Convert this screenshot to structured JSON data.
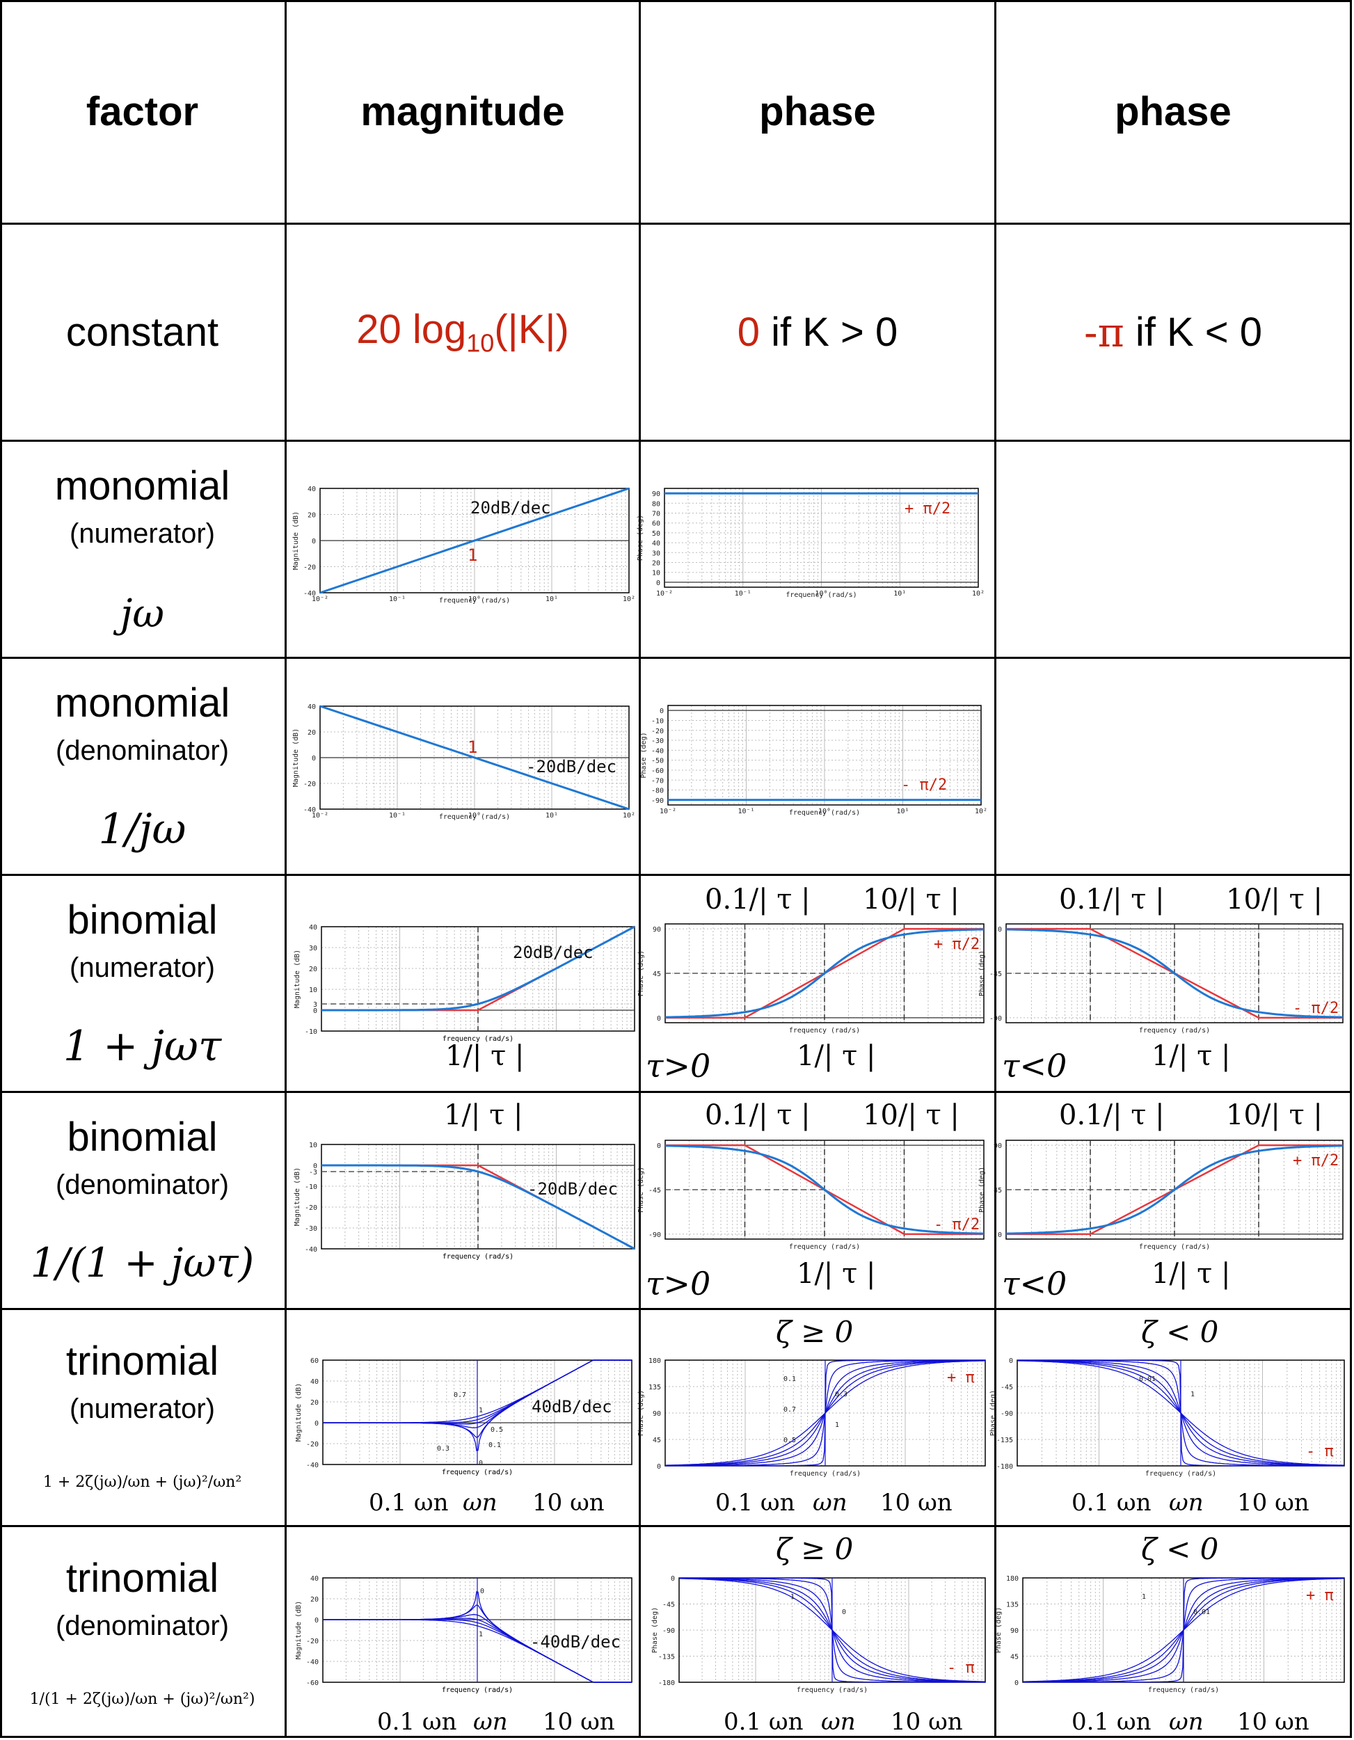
{
  "header": {
    "c1": "factor",
    "c2": "magnitude",
    "c3": "phase",
    "c4": "phase"
  },
  "constant": {
    "factor": "constant",
    "magnitude": "20 log",
    "magnitude_sub": "10",
    "magnitude_arg": "(|K|)",
    "phase_pos_val": "0",
    "phase_pos_cond": " if K > 0",
    "phase_neg_val": "-π",
    "phase_neg_cond": " if K < 0"
  },
  "rows": [
    {
      "title": "monomial",
      "sub": "(numerator)",
      "expr": "jω"
    },
    {
      "title": "monomial",
      "sub": "(denominator)",
      "expr": "1/jω"
    },
    {
      "title": "binomial",
      "sub": "(numerator)",
      "expr": "1 + jωτ"
    },
    {
      "title": "binomial",
      "sub": "(denominator)",
      "expr": "1/(1 + jωτ)"
    },
    {
      "title": "trinomial",
      "sub": "(numerator)",
      "expr": "1 + 2ζ(jω)/ωn + (jω)²/ωn²"
    },
    {
      "title": "trinomial",
      "sub": "(denominator)",
      "expr": "1/(1 + 2ζ(jω)/ωn + (jω)²/ωn²)"
    }
  ],
  "axis": {
    "mag_ylabel": "Magnitude (dB)",
    "phase_ylabel": "Phase (deg)",
    "xlabel": "frequency (rad/s)"
  },
  "annot": {
    "slope20": "20dB/dec",
    "slope_m20": "-20dB/dec",
    "slope40": "40dB/dec",
    "slope_m40": "-40dB/dec",
    "one": "1",
    "plus_pi2": "+ π/2",
    "minus_pi2": "- π/2",
    "plus_pi": "+ π",
    "minus_pi": "- π",
    "low_corner": "0.1/| τ |",
    "high_corner": "10/| τ |",
    "corner": "1/| τ |",
    "tau_pos": "τ>0",
    "tau_neg": "τ<0",
    "zeta_pos": "ζ ≥ 0",
    "zeta_neg": "ζ < 0",
    "wn_low": "0.1 ωn",
    "wn": "ωn",
    "wn_high": "10 ωn"
  },
  "colors": {
    "curve": "#1f78d4",
    "asymptote": "#e8383d",
    "trinomial": "#1010d8",
    "accent_red": "#c62410"
  },
  "chart_data": [
    {
      "type": "line",
      "id": "mono-num-mag",
      "ylabel": "Magnitude (dB)",
      "xlabel": "frequency (rad/s)",
      "xscale": "log",
      "xlim": [
        0.01,
        100
      ],
      "ylim": [
        -40,
        40
      ],
      "yticks": [
        -40,
        -20,
        0,
        20,
        40
      ],
      "series": [
        {
          "x": [
            0.01,
            100
          ],
          "y": [
            -40,
            40
          ]
        }
      ]
    },
    {
      "type": "line",
      "id": "mono-num-phase",
      "ylabel": "Phase (deg)",
      "xlabel": "frequency (rad/s)",
      "xscale": "log",
      "xlim": [
        0.01,
        100
      ],
      "ylim": [
        -5,
        95
      ],
      "yticks": [
        0,
        10,
        20,
        30,
        40,
        50,
        60,
        70,
        80,
        90
      ],
      "series": [
        {
          "x": [
            0.01,
            100
          ],
          "y": [
            90,
            90
          ]
        }
      ]
    },
    {
      "type": "line",
      "id": "mono-den-mag",
      "ylabel": "Magnitude (dB)",
      "xlabel": "frequency (rad/s)",
      "xscale": "log",
      "xlim": [
        0.01,
        100
      ],
      "ylim": [
        -40,
        40
      ],
      "yticks": [
        -40,
        -20,
        0,
        20,
        40
      ],
      "series": [
        {
          "x": [
            0.01,
            100
          ],
          "y": [
            40,
            -40
          ]
        }
      ]
    },
    {
      "type": "line",
      "id": "mono-den-phase",
      "ylabel": "Phase (deg)",
      "xlabel": "frequency (rad/s)",
      "xscale": "log",
      "xlim": [
        0.01,
        100
      ],
      "ylim": [
        -95,
        5
      ],
      "yticks": [
        -90,
        -80,
        -70,
        -60,
        -50,
        -40,
        -30,
        -20,
        -10,
        0
      ],
      "series": [
        {
          "x": [
            0.01,
            100
          ],
          "y": [
            -90,
            -90
          ]
        }
      ]
    },
    {
      "type": "line",
      "id": "bin-num-mag",
      "ylabel": "Magnitude (dB)",
      "xlabel": "frequency (rad/s)",
      "xscale": "log",
      "xlim": [
        0.01,
        100
      ],
      "ylim": [
        -10,
        40
      ],
      "yticks": [
        -10,
        0,
        3,
        10,
        20,
        30,
        40
      ],
      "series": [
        {
          "name": "exact",
          "x": [
            0.01,
            0.1,
            0.5,
            1,
            2,
            5,
            10,
            100
          ],
          "y": [
            0,
            0,
            1,
            3,
            7,
            14.2,
            20,
            40
          ]
        },
        {
          "name": "asymptote",
          "x": [
            0.01,
            1,
            100
          ],
          "y": [
            0,
            0,
            40
          ]
        }
      ]
    },
    {
      "type": "line",
      "id": "bin-num-phase-pos",
      "ylabel": "Phase (deg)",
      "xlabel": "frequency (rad/s)",
      "xscale": "log",
      "xlim": [
        0.01,
        100
      ],
      "ylim": [
        -5,
        95
      ],
      "yticks": [
        0,
        45,
        90
      ],
      "series": [
        {
          "name": "exact",
          "x": [
            0.01,
            0.1,
            0.3,
            1,
            3,
            10,
            100
          ],
          "y": [
            0.6,
            5.7,
            16.7,
            45,
            71.6,
            84.3,
            89.4
          ]
        },
        {
          "name": "asymptote",
          "x": [
            0.01,
            0.1,
            10,
            100
          ],
          "y": [
            0,
            0,
            90,
            90
          ]
        }
      ]
    },
    {
      "type": "line",
      "id": "bin-num-phase-neg",
      "ylabel": "Phase (deg)",
      "xlabel": "frequency (rad/s)",
      "xscale": "log",
      "xlim": [
        0.01,
        100
      ],
      "ylim": [
        -95,
        5
      ],
      "yticks": [
        -90,
        -45,
        0
      ],
      "series": [
        {
          "name": "exact",
          "x": [
            0.01,
            0.1,
            0.3,
            1,
            3,
            10,
            100
          ],
          "y": [
            -0.6,
            -5.7,
            -16.7,
            -45,
            -71.6,
            -84.3,
            -89.4
          ]
        },
        {
          "name": "asymptote",
          "x": [
            0.01,
            0.1,
            10,
            100
          ],
          "y": [
            0,
            0,
            -90,
            -90
          ]
        }
      ]
    },
    {
      "type": "line",
      "id": "bin-den-mag",
      "ylabel": "Magnitude (dB)",
      "xlabel": "frequency (rad/s)",
      "xscale": "log",
      "xlim": [
        0.01,
        100
      ],
      "ylim": [
        -40,
        10
      ],
      "yticks": [
        -40,
        -30,
        -20,
        -10,
        -3,
        0,
        10
      ],
      "series": [
        {
          "name": "exact",
          "x": [
            0.01,
            0.1,
            0.5,
            1,
            2,
            5,
            10,
            100
          ],
          "y": [
            0,
            0,
            -1,
            -3,
            -7,
            -14.2,
            -20,
            -40
          ]
        },
        {
          "name": "asymptote",
          "x": [
            0.01,
            1,
            100
          ],
          "y": [
            0,
            0,
            -40
          ]
        }
      ]
    },
    {
      "type": "line",
      "id": "bin-den-phase-pos",
      "ylabel": "Phase (deg)",
      "xlabel": "frequency (rad/s)",
      "xscale": "log",
      "xlim": [
        0.01,
        100
      ],
      "ylim": [
        -95,
        5
      ],
      "yticks": [
        -90,
        -45,
        0
      ],
      "series": [
        {
          "name": "exact",
          "x": [
            0.01,
            0.1,
            0.3,
            1,
            3,
            10,
            100
          ],
          "y": [
            -0.6,
            -5.7,
            -16.7,
            -45,
            -71.6,
            -84.3,
            -89.4
          ]
        },
        {
          "name": "asymptote",
          "x": [
            0.01,
            0.1,
            10,
            100
          ],
          "y": [
            0,
            0,
            -90,
            -90
          ]
        }
      ]
    },
    {
      "type": "line",
      "id": "bin-den-phase-neg",
      "ylabel": "Phase (deg)",
      "xlabel": "frequency (rad/s)",
      "xscale": "log",
      "xlim": [
        0.01,
        100
      ],
      "ylim": [
        -5,
        95
      ],
      "yticks": [
        0,
        45,
        90
      ],
      "series": [
        {
          "name": "exact",
          "x": [
            0.01,
            0.1,
            0.3,
            1,
            3,
            10,
            100
          ],
          "y": [
            0.6,
            5.7,
            16.7,
            45,
            71.6,
            84.3,
            89.4
          ]
        },
        {
          "name": "asymptote",
          "x": [
            0.01,
            0.1,
            10,
            100
          ],
          "y": [
            0,
            0,
            90,
            90
          ]
        }
      ]
    },
    {
      "type": "line",
      "id": "tri-num-mag",
      "ylabel": "Magnitude (dB)",
      "xlabel": "frequency (rad/s)",
      "xscale": "log",
      "xlim": [
        0.01,
        100
      ],
      "ylim": [
        -40,
        60
      ],
      "yticks": [
        -40,
        -20,
        0,
        20,
        40,
        60
      ],
      "zeta": [
        0,
        0.1,
        0.3,
        0.5,
        0.7,
        1
      ],
      "annotations": [
        "0.7",
        "1",
        "0.5",
        "0.1",
        "0.3",
        "0"
      ]
    },
    {
      "type": "line",
      "id": "tri-num-phase-pos",
      "ylabel": "Phase (deg)",
      "xlabel": "frequency (rad/s)",
      "xscale": "log",
      "xlim": [
        0.01,
        100
      ],
      "ylim": [
        0,
        180
      ],
      "yticks": [
        0,
        45,
        90,
        135,
        180
      ],
      "zeta": [
        0.01,
        0.1,
        0.3,
        0.5,
        0.7,
        1
      ],
      "annotations": [
        "0.1",
        "0.3",
        "0.7",
        "1",
        "0.5"
      ]
    },
    {
      "type": "line",
      "id": "tri-num-phase-neg",
      "ylabel": "Phase (deg)",
      "xlabel": "frequency (rad/s)",
      "xscale": "log",
      "xlim": [
        0.01,
        100
      ],
      "ylim": [
        -180,
        0
      ],
      "yticks": [
        -180,
        -135,
        -90,
        -45,
        0
      ],
      "zeta": [
        -0.01,
        -0.1,
        -0.3,
        -0.5,
        -0.7,
        -1
      ],
      "annotations": [
        "0.01",
        "1"
      ]
    },
    {
      "type": "line",
      "id": "tri-den-mag",
      "ylabel": "Magnitude (dB)",
      "xlabel": "frequency (rad/s)",
      "xscale": "log",
      "xlim": [
        0.01,
        100
      ],
      "ylim": [
        -60,
        40
      ],
      "yticks": [
        -60,
        -40,
        -20,
        0,
        20,
        40
      ],
      "zeta": [
        0,
        0.1,
        0.3,
        0.5,
        0.7,
        1
      ],
      "annotations": [
        "0",
        "1"
      ]
    },
    {
      "type": "line",
      "id": "tri-den-phase-pos",
      "ylabel": "Phase (deg)",
      "xlabel": "frequency (rad/s)",
      "xscale": "log",
      "xlim": [
        0.01,
        100
      ],
      "ylim": [
        -180,
        0
      ],
      "yticks": [
        -180,
        -135,
        -90,
        -45,
        0
      ],
      "zeta": [
        0.01,
        0.1,
        0.3,
        0.5,
        0.7,
        1
      ],
      "annotations": [
        "1",
        "0"
      ]
    },
    {
      "type": "line",
      "id": "tri-den-phase-neg",
      "ylabel": "Phase (deg)",
      "xlabel": "frequency (rad/s)",
      "xscale": "log",
      "xlim": [
        0.01,
        100
      ],
      "ylim": [
        0,
        180
      ],
      "yticks": [
        0,
        45,
        90,
        135,
        180
      ],
      "zeta": [
        -0.01,
        -0.1,
        -0.3,
        -0.5,
        -0.7,
        -1
      ],
      "annotations": [
        "1",
        "0.01"
      ]
    }
  ]
}
